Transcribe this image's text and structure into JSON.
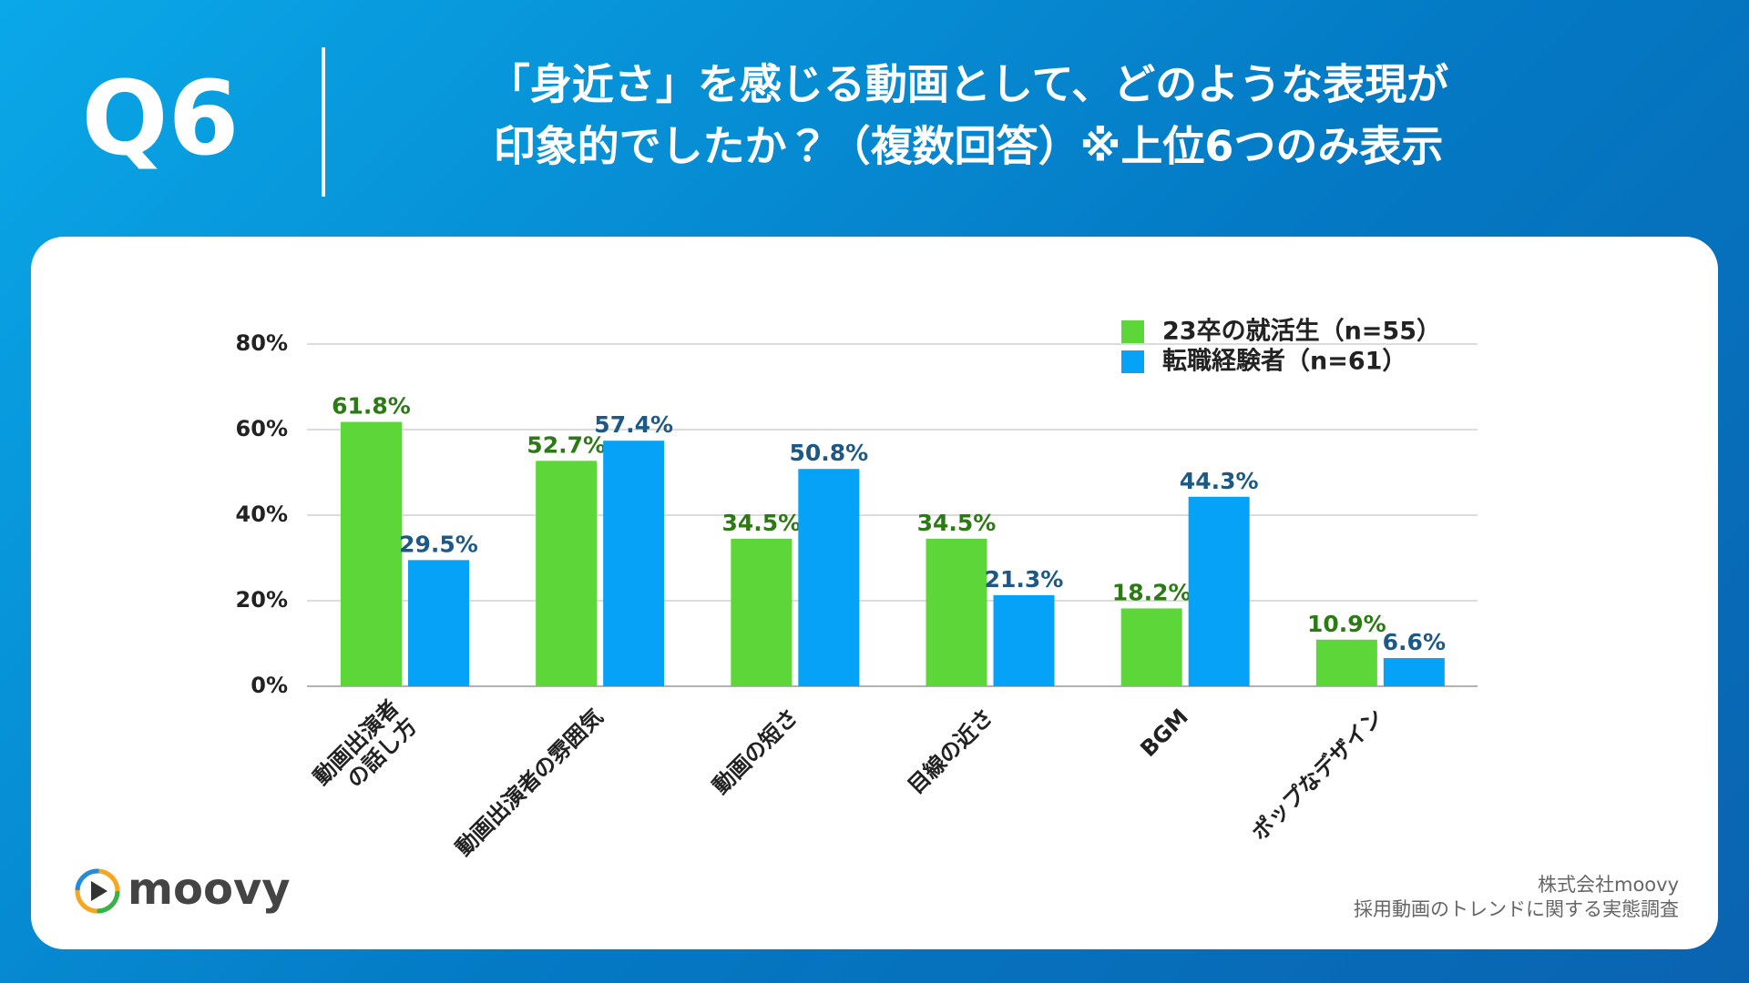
{
  "header": {
    "label": "Q6",
    "title": [
      "「身近さ」を感じる動画として、どのような表現が",
      "印象的でしたか？（複数回答）※上位6つのみ表示"
    ]
  },
  "chart_data": {
    "type": "bar",
    "categories": [
      "動画出演者\nの話し方",
      "動画出演者の雰囲気",
      "動画の短さ",
      "目線の近さ",
      "BGM",
      "ポップなデザイン"
    ],
    "series": [
      {
        "name": "23卒の就活生（n=55）",
        "color": "#5dd639",
        "label_color": "#2b7a14",
        "values": [
          61.8,
          52.7,
          34.5,
          34.5,
          18.2,
          10.9
        ],
        "value_labels": [
          "61.8%",
          "52.7%",
          "34.5%",
          "34.5%",
          "18.2%",
          "10.9%"
        ]
      },
      {
        "name": "転職経験者（n=61）",
        "color": "#06a2f7",
        "label_color": "#1d5987",
        "values": [
          29.5,
          57.4,
          50.8,
          21.3,
          44.3,
          6.6
        ],
        "value_labels": [
          "29.5%",
          "57.4%",
          "50.8%",
          "21.3%",
          "44.3%",
          "6.6%"
        ]
      }
    ],
    "ylim": [
      0,
      80
    ],
    "yticks": [
      {
        "value": 0,
        "label": "0%"
      },
      {
        "value": 20,
        "label": "20%"
      },
      {
        "value": 40,
        "label": "40%"
      },
      {
        "value": 60,
        "label": "60%"
      },
      {
        "value": 80,
        "label": "80%"
      }
    ],
    "grid": true,
    "legend": "top-right"
  },
  "footer": {
    "logo": "moovy",
    "credit": [
      "株式会社moovy",
      "採用動画のトレンドに関する実態調査"
    ]
  }
}
